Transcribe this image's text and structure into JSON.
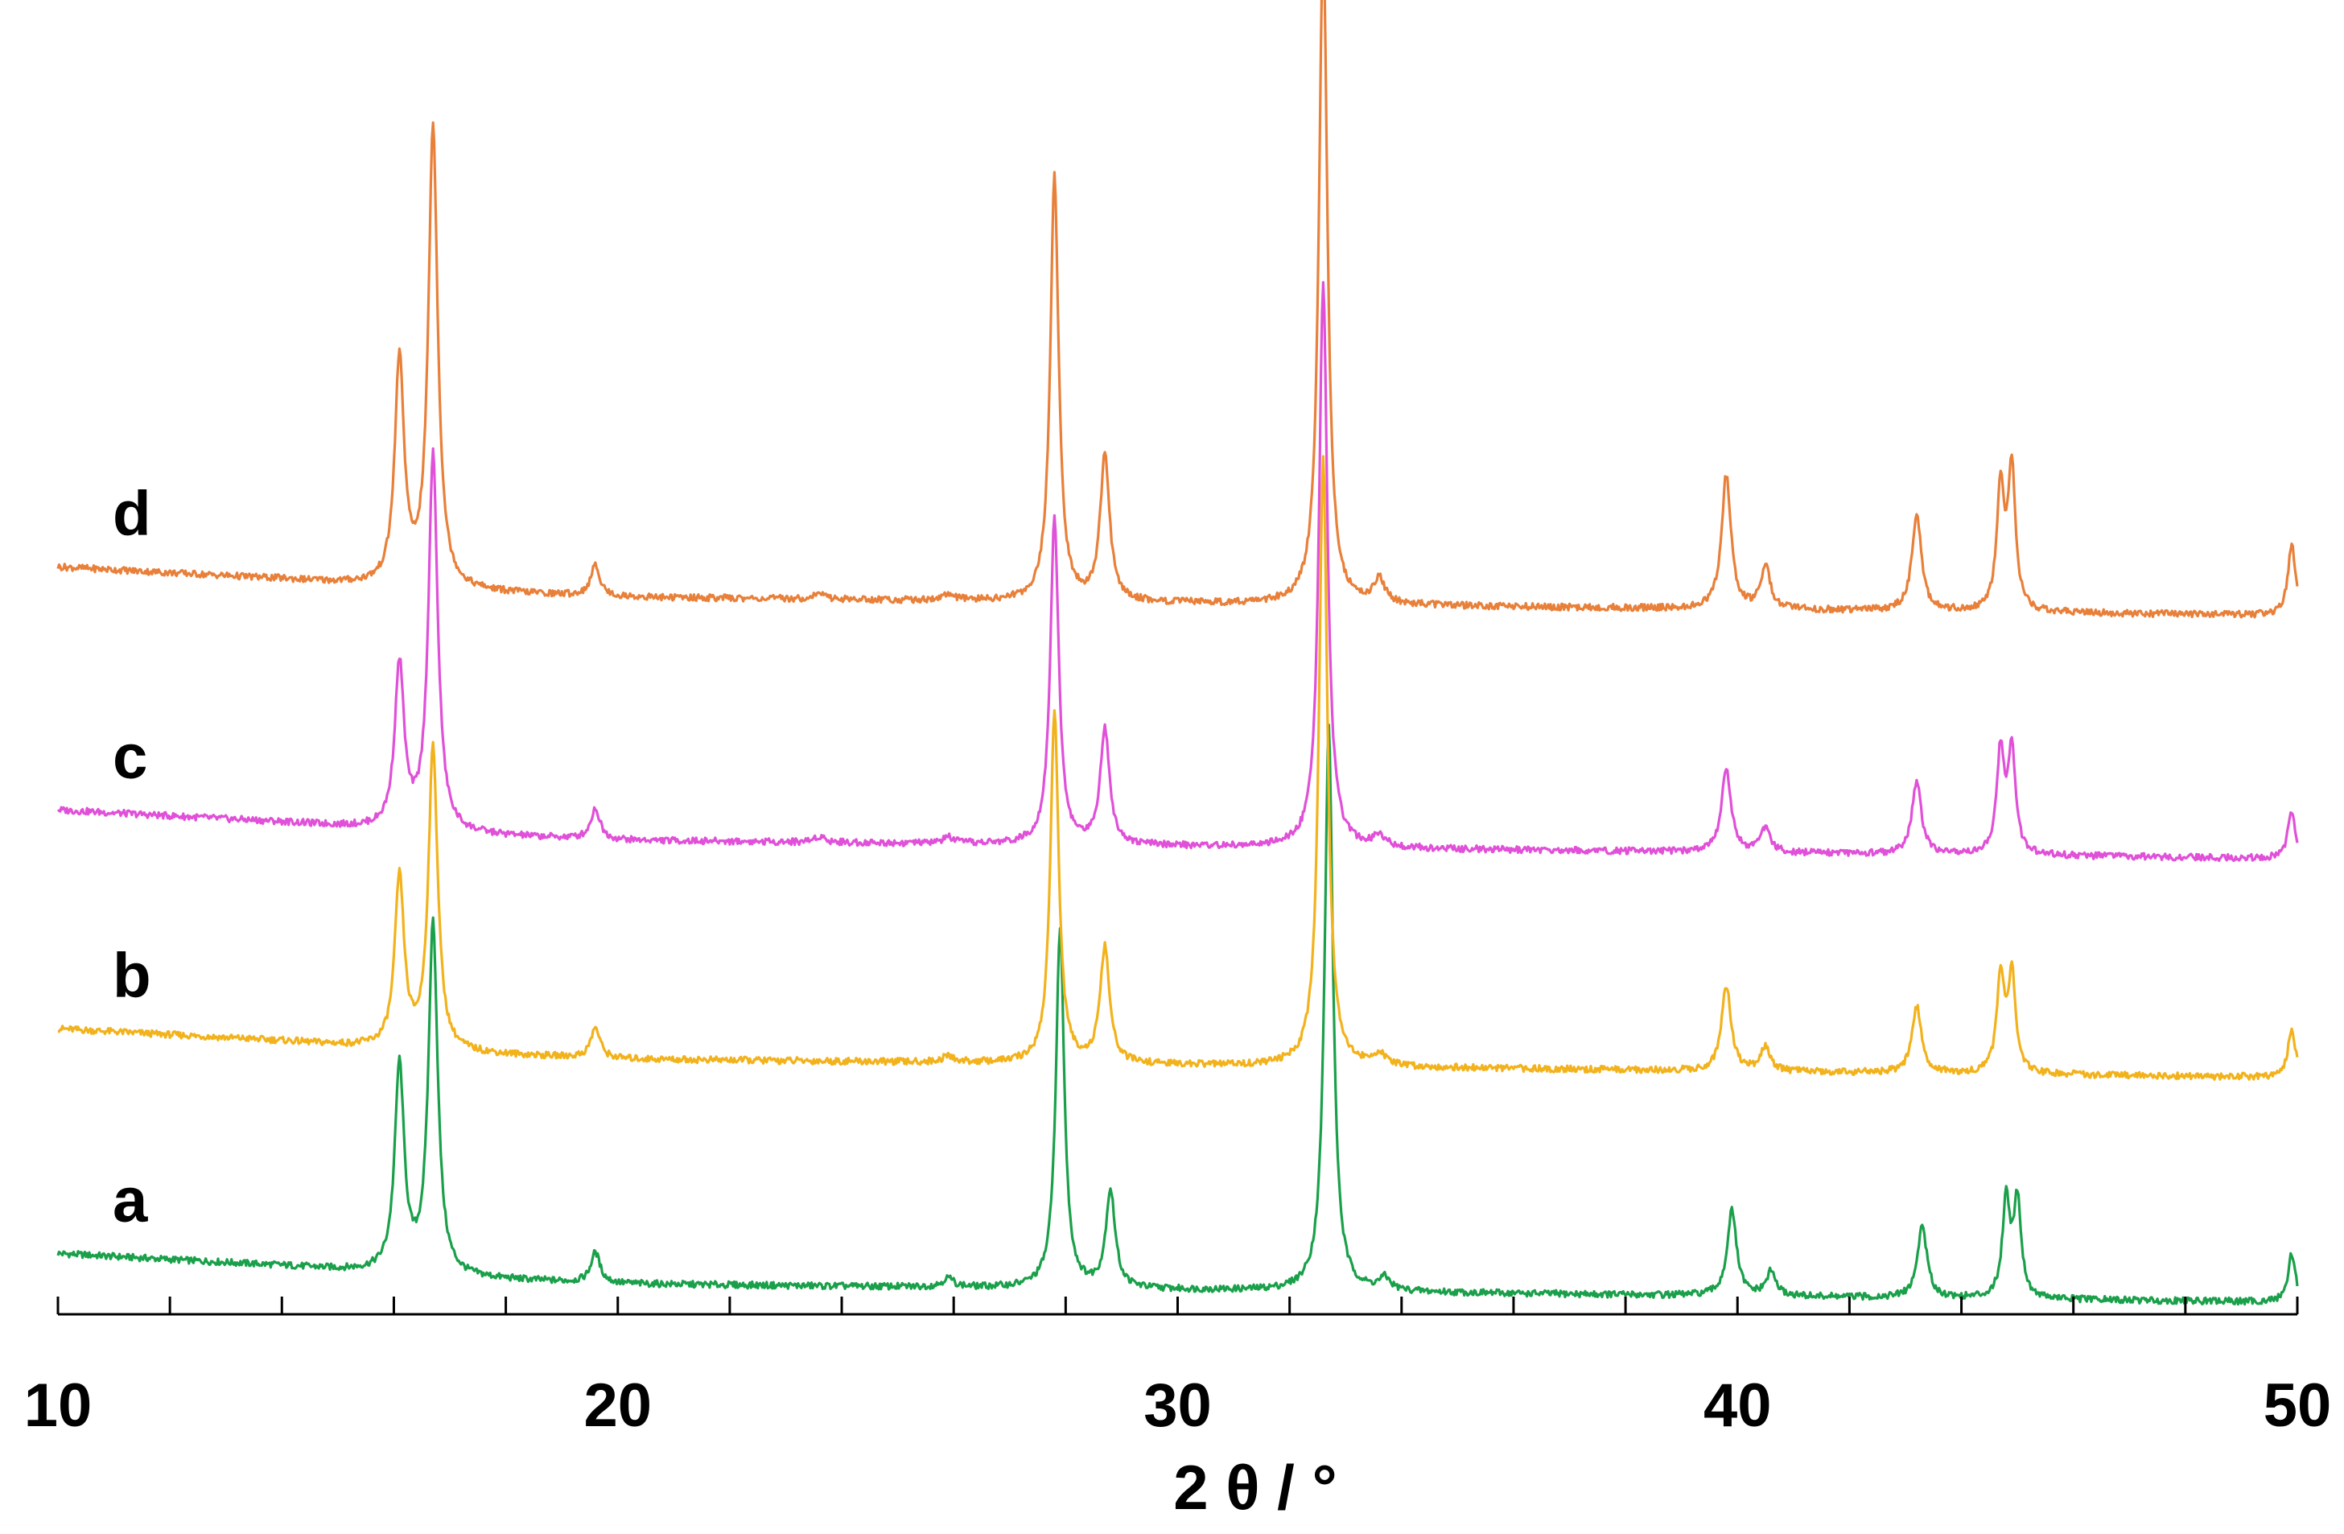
{
  "chart_data": {
    "type": "line",
    "title": "",
    "xlabel": "2 θ / °",
    "ylabel": "",
    "xlim": [
      10,
      50
    ],
    "x_major_ticks": [
      10,
      20,
      30,
      40,
      50
    ],
    "x_tick_labels": [
      "10",
      "20",
      "30",
      "40",
      "50"
    ],
    "x_minor_step": 2,
    "grid": false,
    "legend": "inline labels left",
    "y_units": "intensity (relative, stacked)",
    "series": [
      {
        "name": "a",
        "color": "#1aa04a",
        "offset": 0,
        "baseline": [
          [
            10,
            8
          ],
          [
            14,
            6
          ],
          [
            17,
            4
          ],
          [
            20,
            3
          ],
          [
            30,
            2
          ],
          [
            40,
            1
          ],
          [
            50,
            0
          ]
        ],
        "peaks": [
          {
            "x": 16.1,
            "h": 34,
            "w": 0.1
          },
          {
            "x": 16.7,
            "h": 58,
            "w": 0.1
          },
          {
            "x": 19.6,
            "h": 5,
            "w": 0.1
          },
          {
            "x": 25.9,
            "h": 1.5,
            "w": 0.12
          },
          {
            "x": 27.9,
            "h": 59,
            "w": 0.09
          },
          {
            "x": 28.8,
            "h": 16,
            "w": 0.1
          },
          {
            "x": 32.7,
            "h": 93,
            "w": 0.09
          },
          {
            "x": 33.7,
            "h": 2,
            "w": 0.12
          },
          {
            "x": 39.9,
            "h": 14,
            "w": 0.1
          },
          {
            "x": 40.6,
            "h": 4,
            "w": 0.1
          },
          {
            "x": 43.3,
            "h": 12,
            "w": 0.1
          },
          {
            "x": 44.8,
            "h": 16,
            "w": 0.08
          },
          {
            "x": 45.0,
            "h": 16,
            "w": 0.08
          },
          {
            "x": 49.9,
            "h": 8,
            "w": 0.08
          }
        ]
      },
      {
        "name": "b",
        "color": "#f2b21c",
        "offset": 37,
        "baseline": [
          [
            10,
            8
          ],
          [
            14,
            6
          ],
          [
            17,
            4
          ],
          [
            20,
            3
          ],
          [
            30,
            2
          ],
          [
            40,
            1
          ],
          [
            50,
            0
          ]
        ],
        "peaks": [
          {
            "x": 16.1,
            "h": 28,
            "w": 0.1
          },
          {
            "x": 16.7,
            "h": 50,
            "w": 0.1
          },
          {
            "x": 19.6,
            "h": 5,
            "w": 0.1
          },
          {
            "x": 25.9,
            "h": 1,
            "w": 0.12
          },
          {
            "x": 27.8,
            "h": 58,
            "w": 0.09
          },
          {
            "x": 28.7,
            "h": 19,
            "w": 0.1
          },
          {
            "x": 32.6,
            "h": 100,
            "w": 0.09
          },
          {
            "x": 33.6,
            "h": 2,
            "w": 0.12
          },
          {
            "x": 39.8,
            "h": 14,
            "w": 0.1
          },
          {
            "x": 40.5,
            "h": 4,
            "w": 0.1
          },
          {
            "x": 43.2,
            "h": 11,
            "w": 0.1
          },
          {
            "x": 44.7,
            "h": 16,
            "w": 0.08
          },
          {
            "x": 44.9,
            "h": 16,
            "w": 0.08
          },
          {
            "x": 49.9,
            "h": 8,
            "w": 0.08
          }
        ]
      },
      {
        "name": "c",
        "color": "#e050d8",
        "offset": 73,
        "baseline": [
          [
            10,
            8
          ],
          [
            14,
            6
          ],
          [
            17,
            4
          ],
          [
            20,
            3
          ],
          [
            30,
            2
          ],
          [
            40,
            1
          ],
          [
            50,
            0
          ]
        ],
        "peaks": [
          {
            "x": 16.1,
            "h": 27,
            "w": 0.1
          },
          {
            "x": 16.7,
            "h": 62,
            "w": 0.1
          },
          {
            "x": 19.6,
            "h": 5,
            "w": 0.1
          },
          {
            "x": 23.6,
            "h": 1,
            "w": 0.12
          },
          {
            "x": 25.9,
            "h": 1,
            "w": 0.12
          },
          {
            "x": 27.8,
            "h": 54,
            "w": 0.09
          },
          {
            "x": 28.7,
            "h": 19,
            "w": 0.1
          },
          {
            "x": 32.6,
            "h": 93,
            "w": 0.09
          },
          {
            "x": 33.6,
            "h": 2,
            "w": 0.12
          },
          {
            "x": 39.8,
            "h": 14,
            "w": 0.1
          },
          {
            "x": 40.5,
            "h": 4,
            "w": 0.1
          },
          {
            "x": 43.2,
            "h": 12,
            "w": 0.1
          },
          {
            "x": 44.7,
            "h": 17,
            "w": 0.08
          },
          {
            "x": 44.9,
            "h": 17,
            "w": 0.08
          },
          {
            "x": 49.9,
            "h": 8,
            "w": 0.08
          }
        ]
      },
      {
        "name": "d",
        "color": "#e8803a",
        "offset": 113,
        "baseline": [
          [
            10,
            8
          ],
          [
            14,
            6
          ],
          [
            17,
            4
          ],
          [
            20,
            3
          ],
          [
            30,
            2
          ],
          [
            40,
            1
          ],
          [
            50,
            0
          ]
        ],
        "peaks": [
          {
            "x": 16.1,
            "h": 37,
            "w": 0.1
          },
          {
            "x": 16.7,
            "h": 76,
            "w": 0.1
          },
          {
            "x": 19.6,
            "h": 5,
            "w": 0.1
          },
          {
            "x": 23.6,
            "h": 1,
            "w": 0.12
          },
          {
            "x": 25.9,
            "h": 1,
            "w": 0.12
          },
          {
            "x": 27.8,
            "h": 70,
            "w": 0.09
          },
          {
            "x": 28.7,
            "h": 24,
            "w": 0.1
          },
          {
            "x": 32.6,
            "h": 110,
            "w": 0.09
          },
          {
            "x": 33.6,
            "h": 4,
            "w": 0.12
          },
          {
            "x": 39.8,
            "h": 22,
            "w": 0.1
          },
          {
            "x": 40.5,
            "h": 7,
            "w": 0.1
          },
          {
            "x": 43.2,
            "h": 16,
            "w": 0.1
          },
          {
            "x": 44.7,
            "h": 20,
            "w": 0.08
          },
          {
            "x": 44.9,
            "h": 23,
            "w": 0.08
          },
          {
            "x": 49.9,
            "h": 12,
            "w": 0.08
          }
        ]
      }
    ]
  }
}
